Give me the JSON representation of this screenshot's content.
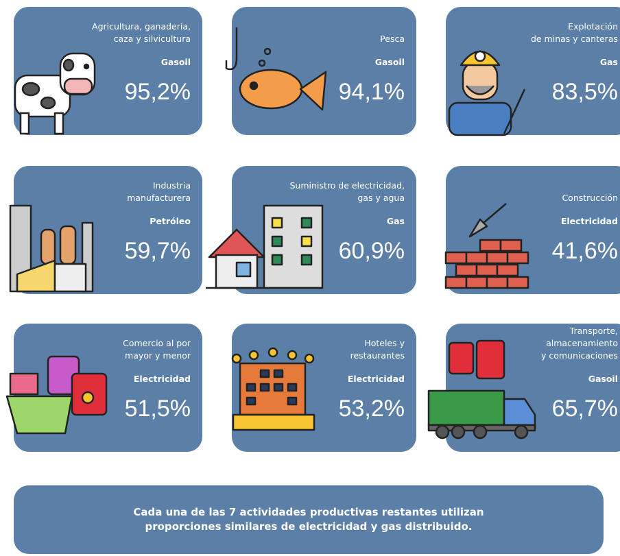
{
  "cards": [
    {
      "label": [
        "Agricultura, ganadería,",
        "caza y silvicultura"
      ],
      "fuel": "Gasoil",
      "share": "95,2%"
    },
    {
      "label": [
        "Pesca"
      ],
      "fuel": "Gasoil",
      "share": "94,1%"
    },
    {
      "label": [
        "Explotación",
        "de minas y canteras"
      ],
      "fuel": "Gas",
      "share": "83,5%"
    },
    {
      "label": [
        "Industria",
        "manufacturera"
      ],
      "fuel": "Petróleo",
      "share": "59,7%"
    },
    {
      "label": [
        "Suministro de electricidad,",
        "gas y agua"
      ],
      "fuel": "Gas",
      "share": "60,9%"
    },
    {
      "label": [
        "Construcción"
      ],
      "fuel": "Electricidad",
      "share": "41,6%"
    },
    {
      "label": [
        "Comercio al por",
        "mayor y menor"
      ],
      "fuel": "Electricidad",
      "share": "51,5%"
    },
    {
      "label": [
        "Hoteles y",
        "restaurantes"
      ],
      "fuel": "Electricidad",
      "share": "53,2%"
    },
    {
      "label": [
        "Transporte,",
        "almacenamiento",
        "y comunicaciones"
      ],
      "fuel": "Gasoil",
      "share": "65,7%"
    }
  ],
  "footer": [
    "Cada una de las 7 actividades productivas restantes utilizan",
    "proporciones similares de electricidad y gas distribuido."
  ]
}
